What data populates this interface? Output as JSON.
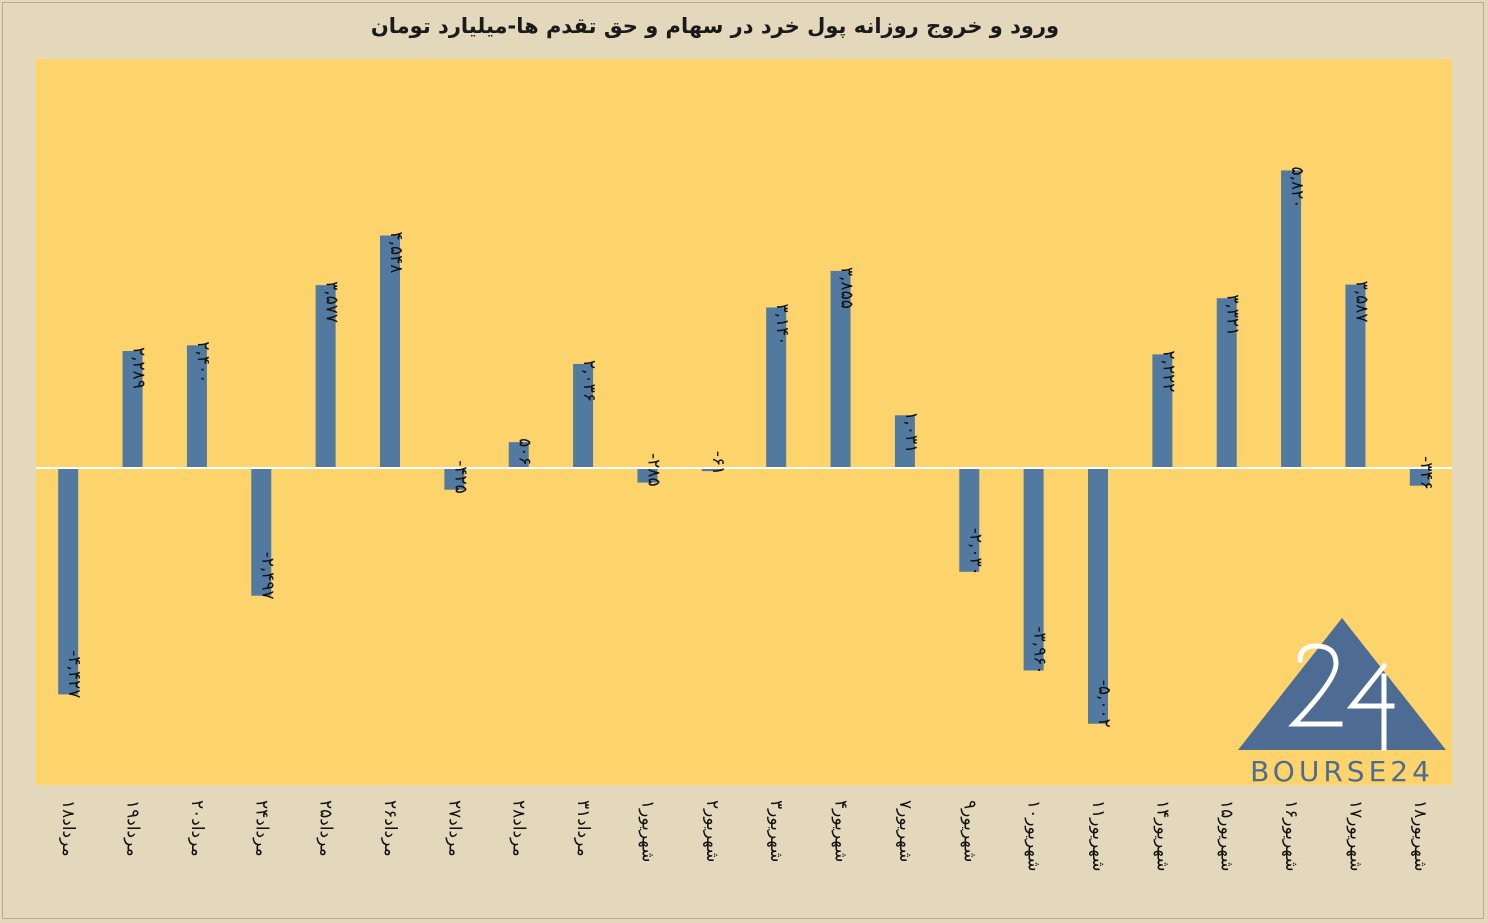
{
  "chart_data": {
    "type": "bar",
    "title": "ورود و خروج روزانه پول خرد در سهام و حق تقدم ها-میلیارد تومان",
    "xlabel": "",
    "ylabel": "",
    "categories": [
      "۱۸مرداد",
      "۱۹مرداد",
      "۲۰مرداد",
      "۲۴مرداد",
      "۲۵مرداد",
      "۲۶مرداد",
      "۲۷مرداد",
      "۲۸مرداد",
      "۳۱مرداد",
      "۱شهریور",
      "۲شهریور",
      "۳شهریور",
      "۴شهریور",
      "۷شهریور",
      "۹شهریور",
      "۱۰شهریور",
      "۱۱شهریور",
      "۱۴شهریور",
      "۱۵شهریور",
      "۱۶شهریور",
      "۱۷شهریور",
      "۱۸شهریور"
    ],
    "values": [
      -4427,
      2289,
      2400,
      -2497,
      3577,
      4548,
      -425,
      506,
      2036,
      -285,
      -61,
      3140,
      3855,
      1031,
      -2030,
      -3960,
      -5002,
      2222,
      3321,
      5820,
      3587,
      -346
    ],
    "data_labels": [
      "-۴,۴۲۷",
      "۲,۲۸۹",
      "۲,۴۰۰",
      "-۲,۴۹۷",
      "۳,۵۷۷",
      "۴,۵۴۸",
      "-۴۲۵",
      "۵۰۶",
      "۲,۰۳۶",
      "-۲۸۵",
      "-۶۱",
      "۳,۱۴۰",
      "۳,۸۵۵",
      "۱,۰۳۱",
      "-۲,۰۳۰",
      "-۳,۹۶۰",
      "-۵,۰۰۲",
      "۲,۲۲۲",
      "۳,۳۲۱",
      "۵,۸۲۰",
      "۳,۵۸۷",
      "-۳۴۶"
    ],
    "ylim": [
      -6200,
      8000
    ],
    "grid": false,
    "legend": "none",
    "colors": {
      "bar": "#527aa1",
      "plot_bg": "#fdd46b",
      "page_bg": "#e3d7bc",
      "axis": "#ffffff"
    }
  },
  "logo": {
    "text": "BOURSE24",
    "color": "#4e6c93"
  }
}
